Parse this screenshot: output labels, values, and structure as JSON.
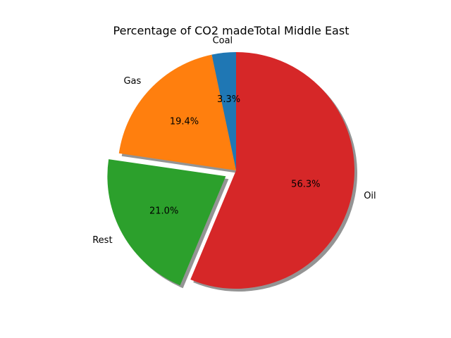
{
  "chart_data": {
    "type": "pie",
    "title": "Percentage of CO2 madeTotal Middle East",
    "labels": [
      "Coal",
      "Gas",
      "Rest",
      "Oil"
    ],
    "values": [
      3.3,
      19.4,
      21.0,
      56.3
    ],
    "autopct": [
      "3.3%",
      "19.4%",
      "21.0%",
      "56.3%"
    ],
    "colors": [
      "#1f77b4",
      "#ff7f0e",
      "#2ca02c",
      "#d62728"
    ],
    "explode": [
      0,
      0,
      0.1,
      0
    ],
    "start_angle_deg": 90,
    "shadow": true
  }
}
